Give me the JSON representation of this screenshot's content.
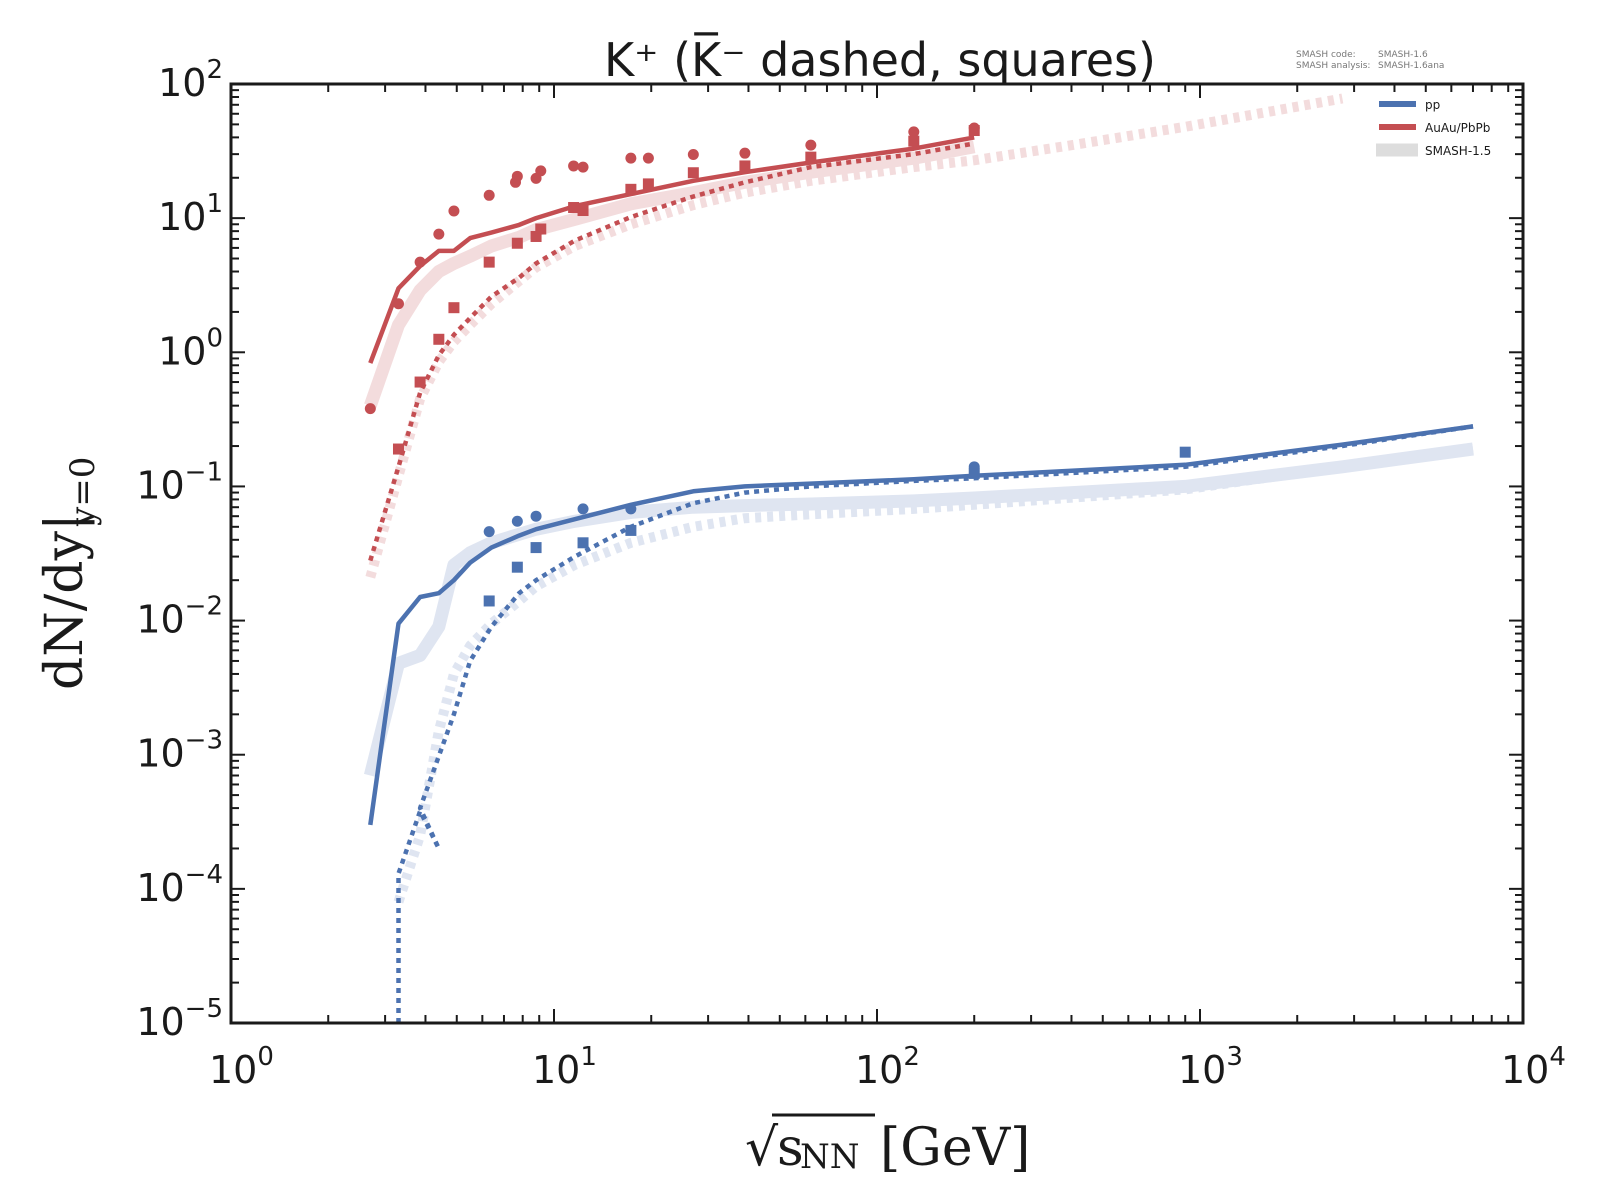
{
  "chart_data": {
    "type": "line",
    "title": "K⁺ (K̅⁻ dashed, squares)",
    "xlabel": "√s_NN [GeV]",
    "xlabel_parts": {
      "sqrt": "√",
      "var": "s",
      "sub": "NN",
      "unit": "[GeV]"
    },
    "ylabel": "dN/dy|_{y=0}",
    "ylabel_parts": {
      "main": "dN/dy|",
      "sub": "y=0"
    },
    "xscale": "log",
    "yscale": "log",
    "xlim": [
      1,
      10000
    ],
    "ylim": [
      1e-05,
      100
    ],
    "x_ticks": [
      {
        "value": 1,
        "base": "10",
        "exp": "0"
      },
      {
        "value": 10,
        "base": "10",
        "exp": "1"
      },
      {
        "value": 100,
        "base": "10",
        "exp": "2"
      },
      {
        "value": 1000,
        "base": "10",
        "exp": "3"
      },
      {
        "value": 10000,
        "base": "10",
        "exp": "4"
      }
    ],
    "y_ticks": [
      {
        "value": 100,
        "base": "10",
        "exp": "2"
      },
      {
        "value": 10,
        "base": "10",
        "exp": "1"
      },
      {
        "value": 1,
        "base": "10",
        "exp": "0"
      },
      {
        "value": 0.1,
        "base": "10",
        "exp": "−1"
      },
      {
        "value": 0.01,
        "base": "10",
        "exp": "−2"
      },
      {
        "value": 0.001,
        "base": "10",
        "exp": "−3"
      },
      {
        "value": 0.0001,
        "base": "10",
        "exp": "−4"
      },
      {
        "value": 1e-05,
        "base": "10",
        "exp": "−5"
      }
    ],
    "grid": false,
    "legend": {
      "placement": "top-right",
      "entries": [
        {
          "label": "pp",
          "color": "#4c72b0"
        },
        {
          "label": "AuAu/PbPb",
          "color": "#c44e52"
        },
        {
          "label": "SMASH-1.5",
          "color": "#dddddd"
        }
      ]
    },
    "annotations": {
      "code_label": "SMASH code:",
      "code_value": "SMASH-1.6",
      "analysis_label": "SMASH analysis:",
      "analysis_value": "SMASH-1.6ana"
    },
    "colors": {
      "pp": "#4c72b0",
      "pp_faint": "#dfe5f1",
      "heavy": "#c44e52",
      "heavy_faint": "#f3dcdd",
      "axis": "#1a1a1a"
    },
    "series": [
      {
        "name": "AuAu/PbPb K+ SMASH-1.5",
        "system": "heavy",
        "style": "faint-solid",
        "x": [
          2.7,
          3.3,
          3.85,
          4.4,
          4.9,
          5.5,
          6.4,
          7.8,
          8.8,
          11.6,
          17.3,
          27,
          39,
          62.4,
          130,
          200
        ],
        "y": [
          0.4,
          1.6,
          2.9,
          4.0,
          4.6,
          5.2,
          6.2,
          7.2,
          8.2,
          9.8,
          12.8,
          15.5,
          18.5,
          22,
          28,
          34
        ]
      },
      {
        "name": "AuAu/PbPb K- SMASH-1.5",
        "system": "heavy",
        "style": "faint-dashed",
        "x": [
          2.7,
          3.3,
          3.85,
          4.4,
          4.9,
          5.5,
          6.4,
          7.8,
          8.8,
          11.6,
          17.3,
          27,
          39,
          62.4,
          130,
          200,
          400,
          900,
          2760
        ],
        "y": [
          0.021,
          0.12,
          0.45,
          0.85,
          1.2,
          1.6,
          2.3,
          3.4,
          4.3,
          6.2,
          9.0,
          12.5,
          15.5,
          19,
          24,
          27,
          35,
          48,
          78
        ]
      },
      {
        "name": "AuAu/PbPb K+",
        "system": "heavy",
        "style": "solid",
        "x": [
          2.7,
          3.3,
          3.85,
          4.4,
          4.9,
          5.5,
          6.4,
          7.8,
          8.8,
          11.6,
          17.3,
          27,
          39,
          62.4,
          130,
          200
        ],
        "y": [
          0.83,
          3.0,
          4.4,
          5.7,
          5.7,
          7.1,
          7.8,
          8.9,
          10,
          12.3,
          15.1,
          19,
          22,
          26,
          33,
          40
        ]
      },
      {
        "name": "AuAu/PbPb K-",
        "system": "heavy",
        "style": "dashed",
        "x": [
          2.7,
          3.3,
          3.85,
          4.4,
          4.9,
          5.5,
          6.4,
          7.8,
          8.8,
          11.6,
          17.3,
          27,
          39,
          62.4,
          130,
          200
        ],
        "y": [
          0.028,
          0.14,
          0.5,
          0.95,
          1.35,
          1.8,
          2.6,
          3.6,
          4.6,
          6.8,
          10.2,
          14.5,
          18.5,
          24,
          30,
          36
        ]
      },
      {
        "name": "pp K+ SMASH-1.5",
        "system": "pp",
        "style": "faint-solid",
        "x": [
          2.7,
          3.3,
          3.85,
          4.4,
          4.9,
          5.5,
          6.4,
          7.8,
          8.8,
          11.6,
          17.3,
          27,
          39,
          62.4,
          130,
          200,
          900,
          2760,
          7000
        ],
        "y": [
          0.0007,
          0.0048,
          0.0055,
          0.009,
          0.026,
          0.032,
          0.038,
          0.044,
          0.048,
          0.055,
          0.064,
          0.07,
          0.072,
          0.074,
          0.078,
          0.082,
          0.1,
          0.14,
          0.19
        ]
      },
      {
        "name": "pp K- SMASH-1.5",
        "system": "pp",
        "style": "faint-dashed",
        "x": [
          3.3,
          3.85,
          4.4,
          4.9,
          5.5,
          6.4,
          7.8,
          8.8,
          11.6,
          17.3,
          27,
          39,
          62.4,
          130,
          200,
          900,
          2760,
          7000
        ],
        "y": [
          8e-05,
          0.00025,
          0.0015,
          0.004,
          0.0065,
          0.0095,
          0.014,
          0.018,
          0.026,
          0.038,
          0.05,
          0.058,
          0.062,
          0.068,
          0.073,
          0.095,
          0.14,
          0.19
        ]
      },
      {
        "name": "pp K+",
        "system": "pp",
        "style": "solid",
        "x": [
          2.7,
          3.3,
          3.85,
          4.4,
          4.9,
          5.5,
          6.4,
          7.8,
          8.8,
          11.6,
          17.3,
          27,
          39,
          62.4,
          130,
          200,
          900,
          2760,
          7000
        ],
        "y": [
          0.0003,
          0.0095,
          0.015,
          0.016,
          0.02,
          0.027,
          0.035,
          0.043,
          0.048,
          0.057,
          0.073,
          0.092,
          0.1,
          0.105,
          0.113,
          0.12,
          0.145,
          0.205,
          0.28
        ]
      },
      {
        "name": "pp K-",
        "system": "pp",
        "style": "dashed",
        "x": [
          3.3,
          3.3,
          3.85,
          4.4,
          3.85,
          4.9,
          5.5,
          6.4,
          7.8,
          8.8,
          11.6,
          17.3,
          27,
          39,
          62.4,
          130,
          200,
          900,
          2760,
          7000
        ],
        "y": [
          1e-05,
          0.00013,
          0.00038,
          0.0002,
          0.0004,
          0.002,
          0.005,
          0.009,
          0.016,
          0.02,
          0.03,
          0.05,
          0.075,
          0.09,
          0.1,
          0.11,
          0.115,
          0.14,
          0.2,
          0.28
        ]
      }
    ],
    "experimental": [
      {
        "name": "AuAu/PbPb K+ data",
        "system": "heavy",
        "marker": "circle",
        "x": [
          2.7,
          3.3,
          3.85,
          4.4,
          4.9,
          6.3,
          7.6,
          7.7,
          8.8,
          9.1,
          11.5,
          12.3,
          17.3,
          19.6,
          27,
          39,
          62.4,
          130,
          200
        ],
        "y": [
          0.38,
          2.3,
          4.7,
          7.6,
          11.3,
          14.8,
          18.5,
          20.5,
          19.8,
          22.5,
          24.5,
          24,
          28,
          28,
          29.8,
          30.5,
          35,
          44,
          47
        ]
      },
      {
        "name": "AuAu/PbPb K- data",
        "system": "heavy",
        "marker": "square",
        "x": [
          3.3,
          3.85,
          4.4,
          4.9,
          6.3,
          7.7,
          8.8,
          9.1,
          11.5,
          12.3,
          17.3,
          19.6,
          27,
          39,
          62.4,
          130,
          200
        ],
        "y": [
          0.19,
          0.6,
          1.25,
          2.15,
          4.7,
          6.5,
          7.3,
          8.3,
          12,
          11.4,
          16.4,
          18,
          21.8,
          24.5,
          28.5,
          37.5,
          45
        ]
      },
      {
        "name": "pp K+ data",
        "system": "pp",
        "marker": "circle",
        "x": [
          6.3,
          7.7,
          8.8,
          12.3,
          17.3,
          200
        ],
        "y": [
          0.046,
          0.055,
          0.06,
          0.068,
          0.068,
          0.14
        ]
      },
      {
        "name": "pp K- data",
        "system": "pp",
        "marker": "square",
        "x": [
          6.3,
          7.7,
          8.8,
          12.3,
          17.3,
          200,
          900
        ],
        "y": [
          0.014,
          0.025,
          0.035,
          0.038,
          0.047,
          0.125,
          0.18
        ]
      }
    ]
  }
}
